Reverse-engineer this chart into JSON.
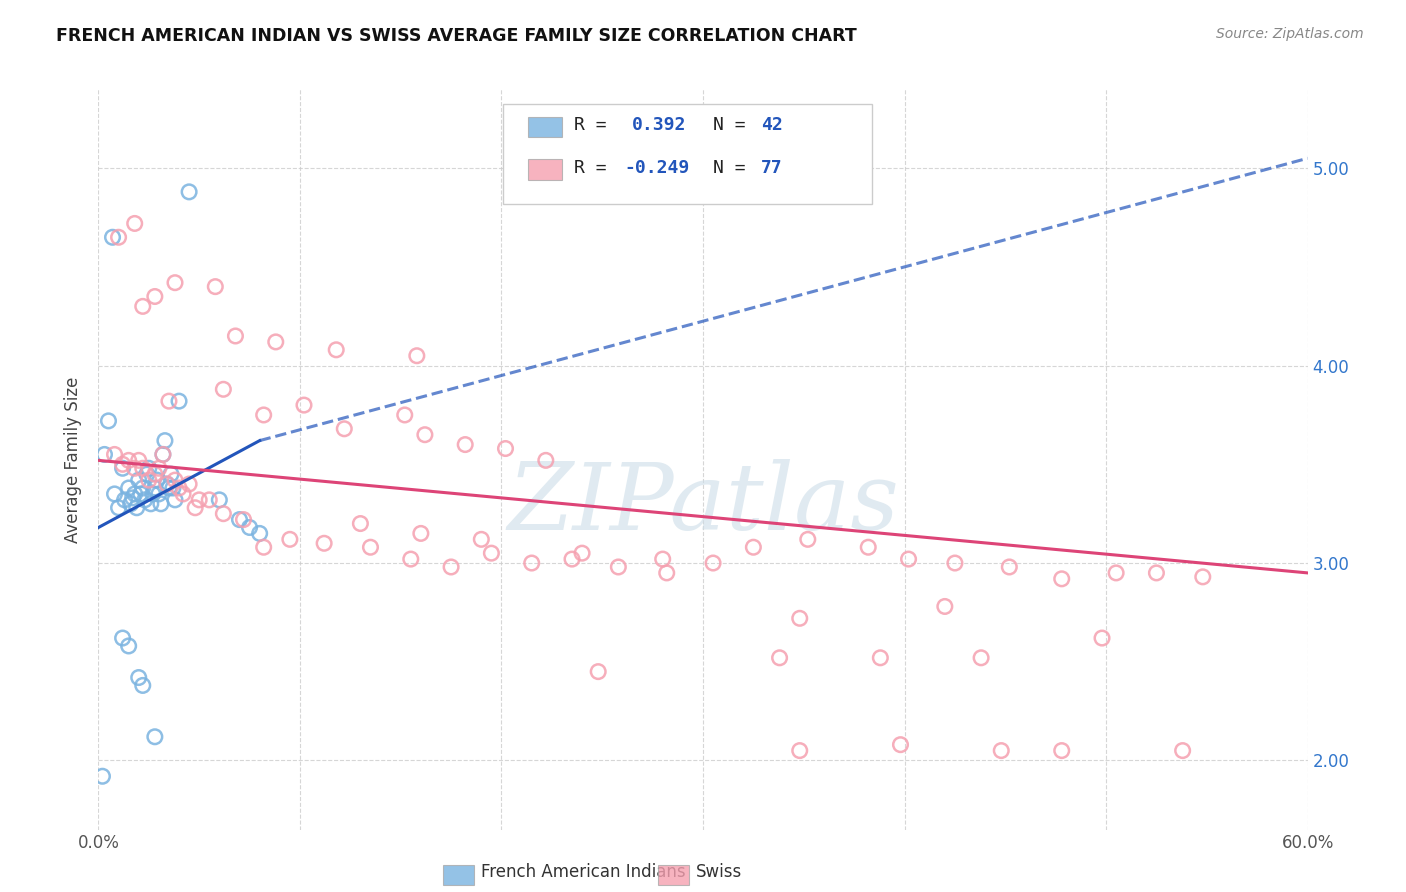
{
  "title": "FRENCH AMERICAN INDIAN VS SWISS AVERAGE FAMILY SIZE CORRELATION CHART",
  "source": "Source: ZipAtlas.com",
  "ylabel": "Average Family Size",
  "yticks": [
    2.0,
    3.0,
    4.0,
    5.0
  ],
  "xlim": [
    0.0,
    0.6
  ],
  "ylim": [
    1.65,
    5.4
  ],
  "blue_color": "#7ab3e0",
  "pink_color": "#f5a0b0",
  "blue_line_color": "#2255bb",
  "pink_line_color": "#dd4477",
  "blue_line_solid_end": 0.08,
  "blue_line_dashed_end": 0.6,
  "blue_scatter": [
    [
      0.003,
      3.55
    ],
    [
      0.005,
      3.72
    ],
    [
      0.007,
      4.65
    ],
    [
      0.008,
      3.35
    ],
    [
      0.01,
      3.28
    ],
    [
      0.012,
      3.48
    ],
    [
      0.013,
      3.32
    ],
    [
      0.015,
      3.38
    ],
    [
      0.016,
      3.3
    ],
    [
      0.017,
      3.33
    ],
    [
      0.018,
      3.35
    ],
    [
      0.019,
      3.28
    ],
    [
      0.02,
      3.42
    ],
    [
      0.021,
      3.35
    ],
    [
      0.022,
      3.38
    ],
    [
      0.023,
      3.32
    ],
    [
      0.024,
      3.45
    ],
    [
      0.025,
      3.48
    ],
    [
      0.026,
      3.3
    ],
    [
      0.027,
      3.35
    ],
    [
      0.028,
      3.38
    ],
    [
      0.029,
      3.42
    ],
    [
      0.03,
      3.35
    ],
    [
      0.031,
      3.3
    ],
    [
      0.032,
      3.55
    ],
    [
      0.033,
      3.62
    ],
    [
      0.034,
      3.4
    ],
    [
      0.035,
      3.38
    ],
    [
      0.036,
      3.45
    ],
    [
      0.037,
      3.38
    ],
    [
      0.038,
      3.32
    ],
    [
      0.04,
      3.82
    ],
    [
      0.045,
      4.88
    ],
    [
      0.012,
      2.62
    ],
    [
      0.022,
      2.38
    ],
    [
      0.028,
      2.12
    ],
    [
      0.002,
      1.92
    ],
    [
      0.015,
      2.58
    ],
    [
      0.02,
      2.42
    ],
    [
      0.06,
      3.32
    ],
    [
      0.07,
      3.22
    ],
    [
      0.075,
      3.18
    ],
    [
      0.08,
      3.15
    ]
  ],
  "pink_scatter": [
    [
      0.01,
      4.65
    ],
    [
      0.018,
      4.72
    ],
    [
      0.022,
      4.3
    ],
    [
      0.028,
      4.35
    ],
    [
      0.038,
      4.42
    ],
    [
      0.058,
      4.4
    ],
    [
      0.068,
      4.15
    ],
    [
      0.088,
      4.12
    ],
    [
      0.118,
      4.08
    ],
    [
      0.158,
      4.05
    ],
    [
      0.035,
      3.82
    ],
    [
      0.062,
      3.88
    ],
    [
      0.082,
      3.75
    ],
    [
      0.102,
      3.8
    ],
    [
      0.122,
      3.68
    ],
    [
      0.152,
      3.75
    ],
    [
      0.162,
      3.65
    ],
    [
      0.182,
      3.6
    ],
    [
      0.202,
      3.58
    ],
    [
      0.222,
      3.52
    ],
    [
      0.008,
      3.55
    ],
    [
      0.012,
      3.5
    ],
    [
      0.015,
      3.52
    ],
    [
      0.018,
      3.48
    ],
    [
      0.02,
      3.52
    ],
    [
      0.022,
      3.48
    ],
    [
      0.025,
      3.42
    ],
    [
      0.028,
      3.45
    ],
    [
      0.03,
      3.48
    ],
    [
      0.032,
      3.55
    ],
    [
      0.034,
      3.4
    ],
    [
      0.038,
      3.42
    ],
    [
      0.04,
      3.38
    ],
    [
      0.042,
      3.35
    ],
    [
      0.045,
      3.4
    ],
    [
      0.048,
      3.28
    ],
    [
      0.05,
      3.32
    ],
    [
      0.055,
      3.32
    ],
    [
      0.062,
      3.25
    ],
    [
      0.072,
      3.22
    ],
    [
      0.082,
      3.08
    ],
    [
      0.095,
      3.12
    ],
    [
      0.112,
      3.1
    ],
    [
      0.135,
      3.08
    ],
    [
      0.155,
      3.02
    ],
    [
      0.175,
      2.98
    ],
    [
      0.195,
      3.05
    ],
    [
      0.215,
      3.0
    ],
    [
      0.235,
      3.02
    ],
    [
      0.258,
      2.98
    ],
    [
      0.282,
      2.95
    ],
    [
      0.305,
      3.0
    ],
    [
      0.325,
      3.08
    ],
    [
      0.352,
      3.12
    ],
    [
      0.382,
      3.08
    ],
    [
      0.402,
      3.02
    ],
    [
      0.425,
      3.0
    ],
    [
      0.452,
      2.98
    ],
    [
      0.478,
      2.92
    ],
    [
      0.505,
      2.95
    ],
    [
      0.525,
      2.95
    ],
    [
      0.548,
      2.93
    ],
    [
      0.13,
      3.2
    ],
    [
      0.16,
      3.15
    ],
    [
      0.19,
      3.12
    ],
    [
      0.24,
      3.05
    ],
    [
      0.28,
      3.02
    ],
    [
      0.338,
      2.52
    ],
    [
      0.388,
      2.52
    ],
    [
      0.438,
      2.52
    ],
    [
      0.248,
      2.45
    ],
    [
      0.348,
      2.05
    ],
    [
      0.398,
      2.08
    ],
    [
      0.448,
      2.05
    ],
    [
      0.478,
      2.05
    ],
    [
      0.538,
      2.05
    ],
    [
      0.348,
      2.72
    ],
    [
      0.42,
      2.78
    ],
    [
      0.498,
      2.62
    ]
  ],
  "watermark": "ZIPatlas",
  "watermark_color": "#ccdde8",
  "background_color": "#ffffff",
  "grid_color": "#cccccc"
}
